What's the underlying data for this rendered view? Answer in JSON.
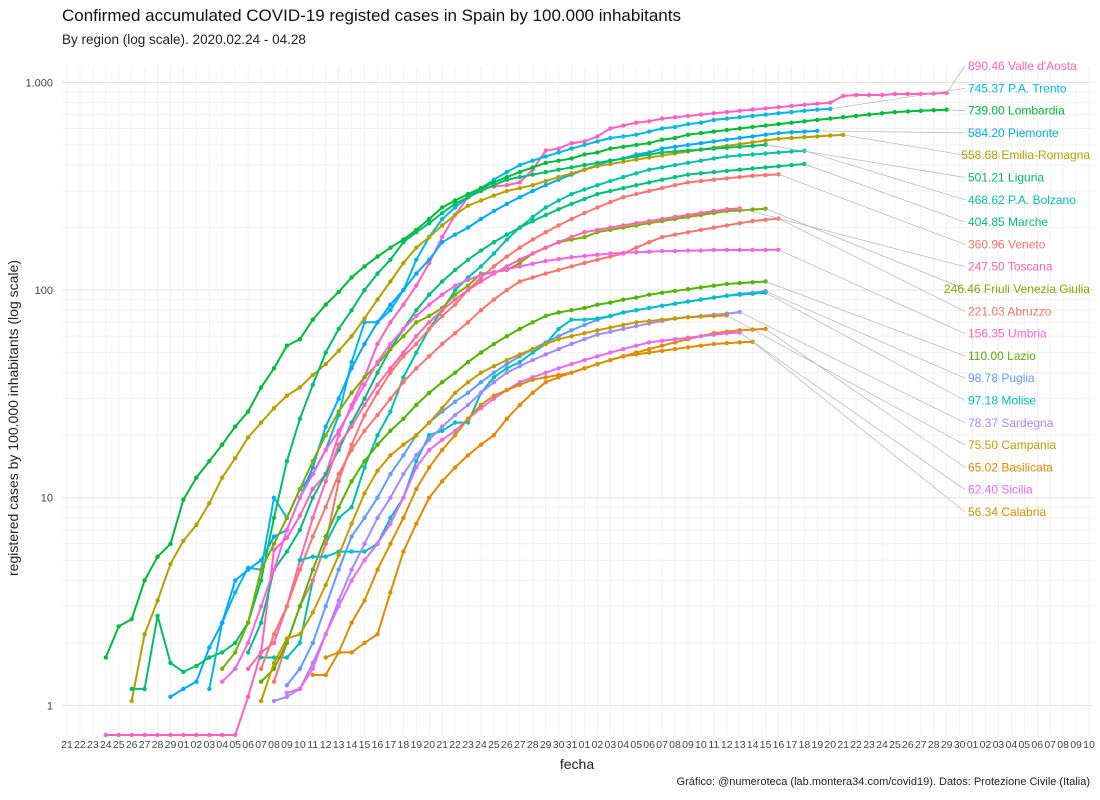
{
  "title": "Confirmed accumulated COVID-19 registed cases in Spain by 100.000 inhabitants",
  "subtitle": "By region (log scale). 2020.02.24 - 04.28",
  "caption": "Gráfico: @numeroteca (lab.montera34.com/covid19). Datos: Protezione Civile (Italia)",
  "chart_data": {
    "type": "line",
    "title": "Confirmed accumulated COVID-19 registed cases in Spain by 100.000 inhabitants",
    "subtitle": "By region (log scale). 2020.02.24 - 04.28",
    "xlabel": "fecha",
    "ylabel": "registered cases  by 100.000 inhabitants (log scale)",
    "yscale": "log",
    "ylim": [
      0.72,
      1200
    ],
    "yticks": [
      1,
      10,
      100,
      1000
    ],
    "ytick_labels": [
      "1",
      "10",
      "100",
      "1.000"
    ],
    "x_day_range": [
      "2020-02-21",
      "2020-05-10"
    ],
    "xtick_labels": [
      "21",
      "22",
      "23",
      "24",
      "25",
      "26",
      "27",
      "28",
      "29",
      "01",
      "02",
      "03",
      "04",
      "05",
      "06",
      "07",
      "08",
      "09",
      "10",
      "11",
      "12",
      "13",
      "14",
      "15",
      "16",
      "17",
      "18",
      "19",
      "20",
      "21",
      "22",
      "23",
      "24",
      "25",
      "26",
      "27",
      "28",
      "29",
      "30",
      "31",
      "01",
      "02",
      "03",
      "04",
      "05",
      "06",
      "07",
      "08",
      "09",
      "10",
      "11",
      "12",
      "13",
      "14",
      "15",
      "16",
      "17",
      "18",
      "19",
      "20",
      "21",
      "22",
      "23",
      "24",
      "25",
      "26",
      "27",
      "28",
      "29",
      "30",
      "01",
      "02",
      "03",
      "04",
      "05",
      "06",
      "07",
      "08",
      "09",
      "10"
    ],
    "grid": true,
    "legend": "direct labels at right",
    "series": [
      {
        "name": "Valle d'Aosta",
        "label": "890.46 Valle d'Aosta",
        "color": "#FF61C3",
        "start": "2020-02-24",
        "values": [
          0.72,
          0.72,
          0.72,
          0.72,
          0.72,
          0.72,
          0.72,
          0.72,
          0.72,
          0.72,
          0.72,
          1.1,
          1.8,
          5.6,
          6.4,
          8.2,
          11,
          13,
          20,
          28,
          38,
          55,
          70,
          85,
          105,
          135,
          180,
          230,
          280,
          310,
          315,
          320,
          330,
          380,
          470,
          480,
          510,
          520,
          550,
          600,
          620,
          640,
          650,
          670,
          680,
          690,
          700,
          710,
          720,
          730,
          740,
          750,
          760,
          770,
          780,
          790,
          800,
          860,
          870,
          870,
          870,
          880,
          880,
          880,
          885,
          890.46
        ]
      },
      {
        "name": "P.A. Trento",
        "label": "745.37 P.A. Trento",
        "color": "#00B9E3",
        "start": "2020-03-03",
        "values": [
          1.2,
          2.5,
          3.5,
          4.6,
          4.5,
          10,
          8,
          11,
          13,
          17,
          25,
          45,
          70,
          70,
          80,
          100,
          140,
          180,
          220,
          250,
          280,
          310,
          340,
          370,
          400,
          420,
          440,
          460,
          480,
          500,
          520,
          540,
          550,
          560,
          580,
          600,
          610,
          630,
          640,
          660,
          670,
          680,
          690,
          700,
          710,
          720,
          730,
          740,
          745.37
        ]
      },
      {
        "name": "Lombardia",
        "label": "739.00 Lombardia",
        "color": "#00BA38",
        "start": "2020-02-24",
        "values": [
          1.7,
          2.4,
          2.6,
          4.0,
          5.2,
          6.0,
          9.8,
          12.5,
          15,
          18,
          22,
          26,
          34,
          42,
          54,
          58,
          72,
          85,
          98,
          115,
          130,
          145,
          160,
          175,
          195,
          220,
          250,
          270,
          290,
          310,
          330,
          350,
          370,
          390,
          410,
          420,
          430,
          450,
          460,
          480,
          490,
          500,
          510,
          530,
          540,
          560,
          570,
          580,
          590,
          600,
          610,
          620,
          630,
          640,
          650,
          660,
          670,
          680,
          690,
          700,
          710,
          720,
          725,
          730,
          735,
          739.0
        ]
      },
      {
        "name": "Piemonte",
        "label": "584.20 Piemonte",
        "color": "#00A9FF",
        "start": "2020-02-29",
        "values": [
          1.1,
          1.2,
          1.3,
          1.9,
          2.5,
          4.0,
          4.5,
          5.0,
          6.5,
          7,
          10,
          14,
          22,
          30,
          42,
          55,
          70,
          85,
          100,
          120,
          140,
          170,
          185,
          200,
          220,
          240,
          260,
          280,
          300,
          320,
          340,
          360,
          380,
          400,
          420,
          430,
          450,
          460,
          480,
          490,
          500,
          510,
          520,
          530,
          540,
          550,
          560,
          570,
          575,
          580,
          584.2
        ]
      },
      {
        "name": "Emilia-Romagna",
        "label": "558.68 Emilia-Romagna",
        "color": "#B79F00",
        "start": "2020-02-26",
        "values": [
          1.05,
          2.2,
          3.2,
          4.8,
          6.2,
          7.4,
          9.4,
          12.5,
          15.5,
          19.5,
          23,
          27,
          31,
          34,
          39,
          44,
          51,
          60,
          73,
          90,
          110,
          135,
          160,
          180,
          205,
          230,
          255,
          270,
          285,
          300,
          310,
          320,
          335,
          350,
          365,
          380,
          395,
          405,
          415,
          425,
          435,
          445,
          455,
          465,
          475,
          485,
          495,
          505,
          515,
          525,
          535,
          540,
          545,
          550,
          555,
          558.68
        ]
      },
      {
        "name": "Liguria",
        "label": "501.21 Liguria",
        "color": "#00BE67",
        "start": "2020-02-26",
        "values": [
          1.2,
          1.2,
          2.7,
          1.6,
          1.45,
          1.55,
          1.7,
          1.8,
          2.0,
          2.5,
          4,
          8,
          15,
          24,
          35,
          50,
          65,
          80,
          100,
          120,
          140,
          170,
          190,
          210,
          235,
          260,
          280,
          300,
          320,
          340,
          350,
          360,
          370,
          380,
          390,
          400,
          410,
          420,
          430,
          440,
          450,
          460,
          465,
          470,
          475,
          480,
          485,
          490,
          495,
          501.21
        ]
      },
      {
        "name": "P.A. Bolzano",
        "label": "468.62 P.A. Bolzano",
        "color": "#00C1A9",
        "start": "2020-03-07",
        "values": [
          1.7,
          1.7,
          1.7,
          2.0,
          4.0,
          6.0,
          8,
          9,
          14,
          20,
          26,
          38,
          50,
          65,
          80,
          100,
          115,
          130,
          150,
          175,
          200,
          225,
          250,
          270,
          290,
          305,
          320,
          335,
          350,
          365,
          380,
          390,
          400,
          410,
          420,
          430,
          440,
          445,
          450,
          455,
          460,
          465,
          468.62
        ]
      },
      {
        "name": "Marche",
        "label": "404.85 Marche",
        "color": "#00BF7D",
        "start": "2020-03-06",
        "values": [
          1.8,
          2.5,
          4.5,
          5.5,
          7,
          10,
          13,
          17,
          23,
          30,
          40,
          52,
          65,
          80,
          95,
          110,
          125,
          140,
          155,
          170,
          185,
          200,
          215,
          230,
          245,
          260,
          275,
          290,
          300,
          310,
          320,
          330,
          340,
          350,
          360,
          365,
          370,
          375,
          380,
          385,
          390,
          395,
          400,
          404.85
        ]
      },
      {
        "name": "Friuli Venezia Giulia",
        "label": "246.46 Friuli Venezia Giulia",
        "color": "#7CAE00",
        "start": "2020-03-04",
        "values": [
          1.5,
          1.8,
          2.5,
          4.5,
          6.0,
          8,
          11,
          15,
          20,
          26,
          32,
          38,
          44,
          52,
          60,
          70,
          75,
          82,
          95,
          105,
          120,
          122,
          125,
          135,
          150,
          160,
          170,
          175,
          180,
          190,
          195,
          200,
          205,
          210,
          215,
          220,
          225,
          230,
          235,
          240,
          242,
          244,
          246.46
        ]
      },
      {
        "name": "Veneto",
        "label": "360.96 Veneto",
        "color": "#F8766D",
        "start": "2020-03-08",
        "values": [
          1.3,
          2.0,
          3.0,
          4.0,
          6.0,
          12,
          18,
          25,
          32,
          40,
          48,
          55,
          65,
          75,
          85,
          100,
          115,
          130,
          145,
          160,
          175,
          190,
          205,
          220,
          235,
          250,
          265,
          280,
          290,
          300,
          310,
          320,
          330,
          335,
          340,
          345,
          350,
          355,
          358,
          360.96
        ]
      },
      {
        "name": "Toscana",
        "label": "247.50 Toscana",
        "color": "#FF64B0",
        "start": "2020-03-06",
        "values": [
          1.5,
          1.8,
          2.0,
          3.0,
          5.0,
          8,
          12,
          18,
          22,
          28,
          35,
          42,
          50,
          60,
          70,
          80,
          90,
          100,
          110,
          120,
          130,
          140,
          150,
          160,
          170,
          180,
          190,
          195,
          200,
          205,
          210,
          215,
          220,
          225,
          230,
          235,
          240,
          245,
          247.5
        ]
      },
      {
        "name": "Abruzzo",
        "label": "221.03 Abruzzo",
        "color": "#F8766D",
        "start": "2020-03-07",
        "values": [
          1.5,
          2.2,
          3.0,
          4.5,
          6.5,
          9,
          13,
          17,
          21,
          25,
          30,
          36,
          42,
          48,
          55,
          62,
          70,
          80,
          90,
          100,
          110,
          115,
          120,
          125,
          130,
          135,
          140,
          145,
          150,
          160,
          170,
          180,
          185,
          190,
          195,
          200,
          205,
          210,
          215,
          218,
          221.03
        ]
      },
      {
        "name": "Umbria",
        "label": "156.35 Umbria",
        "color": "#F564E3",
        "start": "2020-03-04",
        "values": [
          1.3,
          1.5,
          2.0,
          3.0,
          4.5,
          7,
          10,
          13,
          17,
          21,
          27,
          35,
          45,
          55,
          65,
          75,
          85,
          95,
          105,
          112,
          118,
          122,
          126,
          130,
          134,
          138,
          141,
          144,
          146,
          148,
          150,
          151,
          152,
          153,
          154,
          154,
          155,
          155,
          156,
          156,
          156,
          156,
          156.2,
          156.35
        ]
      },
      {
        "name": "Lazio",
        "label": "110.00 Lazio",
        "color": "#53B400",
        "start": "2020-03-07",
        "values": [
          1.3,
          1.5,
          2.0,
          3.0,
          4.5,
          6.5,
          9,
          12,
          15,
          18,
          21,
          24,
          28,
          32,
          36,
          40,
          45,
          50,
          55,
          60,
          65,
          70,
          75,
          78,
          80,
          82,
          85,
          87,
          90,
          92,
          95,
          97,
          99,
          101,
          103,
          105,
          107,
          108,
          109,
          110.0
        ]
      },
      {
        "name": "Puglia",
        "label": "98.78 Puglia",
        "color": "#619CFF",
        "start": "2020-03-09",
        "values": [
          1.25,
          1.5,
          2.0,
          3.0,
          4.5,
          6.5,
          8,
          10,
          13,
          16,
          20,
          23,
          26,
          29,
          32,
          36,
          40,
          44,
          48,
          52,
          56,
          60,
          64,
          68,
          72,
          75,
          78,
          80,
          82,
          84,
          86,
          88,
          90,
          92,
          94,
          96,
          97,
          98.78
        ]
      },
      {
        "name": "Molise",
        "label": "97.18 Molise",
        "color": "#00BFC4",
        "start": "2020-03-10",
        "values": [
          5,
          5.2,
          5.2,
          5.5,
          5.5,
          5.5,
          6,
          8,
          10,
          15,
          20,
          21,
          23,
          23,
          32,
          38,
          42,
          45,
          50,
          55,
          65,
          72,
          72,
          73,
          75,
          78,
          80,
          82,
          84,
          86,
          88,
          90,
          92,
          94,
          95,
          96,
          97.18
        ]
      },
      {
        "name": "Sardegna",
        "label": "78.37 Sardegna",
        "color": "#A58AFF",
        "start": "2020-03-08",
        "values": [
          1.05,
          1.1,
          1.2,
          1.6,
          2.2,
          3.2,
          4.5,
          6,
          8,
          10,
          13,
          16,
          19,
          22,
          25,
          28,
          32,
          36,
          40,
          43,
          46,
          49,
          52,
          55,
          58,
          61,
          63,
          65,
          67,
          69,
          71,
          73,
          74,
          75,
          76,
          77,
          78.37
        ]
      },
      {
        "name": "Campania",
        "label": "75.50 Campania",
        "color": "#C49A00",
        "start": "2020-03-07",
        "values": [
          1.05,
          1.6,
          2.1,
          2.2,
          2.8,
          3.8,
          5.3,
          7.5,
          10.5,
          13.5,
          16,
          18,
          20,
          23,
          27,
          32,
          36,
          40,
          43,
          46,
          49,
          52,
          55,
          58,
          60,
          62,
          64,
          66,
          68,
          70,
          71,
          72,
          73,
          74,
          74.5,
          75,
          75.5
        ]
      },
      {
        "name": "Basilicata",
        "label": "65.02 Basilicata",
        "color": "#E58700",
        "start": "2020-03-11",
        "values": [
          1.4,
          1.4,
          1.8,
          1.8,
          2.0,
          2.2,
          3.5,
          5.5,
          7.5,
          10,
          12,
          14,
          16,
          18,
          20,
          24,
          28,
          32,
          36,
          38,
          40,
          42,
          44,
          46,
          48,
          50,
          52,
          54,
          56,
          58,
          60,
          62,
          63,
          64,
          64.5,
          65.02
        ]
      },
      {
        "name": "Sicilia",
        "label": "62.40 Sicilia",
        "color": "#E76BF3",
        "start": "2020-03-09",
        "values": [
          1.15,
          1.2,
          1.5,
          2.2,
          3.0,
          4.0,
          5.0,
          6.0,
          7.5,
          10,
          14,
          17,
          19,
          21,
          24,
          27,
          30,
          33,
          36,
          38,
          40,
          42,
          44,
          46,
          48,
          50,
          52,
          54,
          56,
          57,
          58,
          59,
          60,
          61,
          62,
          62.4
        ]
      },
      {
        "name": "Calabria",
        "label": "56.34 Calabria",
        "color": "#D89000",
        "start": "2020-03-12",
        "values": [
          1.7,
          1.8,
          2.5,
          3.2,
          4.5,
          6,
          8,
          11,
          14,
          17,
          20,
          24,
          28,
          31,
          33,
          35,
          37,
          38,
          39,
          40,
          42,
          44,
          46,
          48,
          49,
          50,
          51,
          52,
          53,
          54,
          55,
          55.5,
          56,
          56.34
        ]
      }
    ]
  }
}
